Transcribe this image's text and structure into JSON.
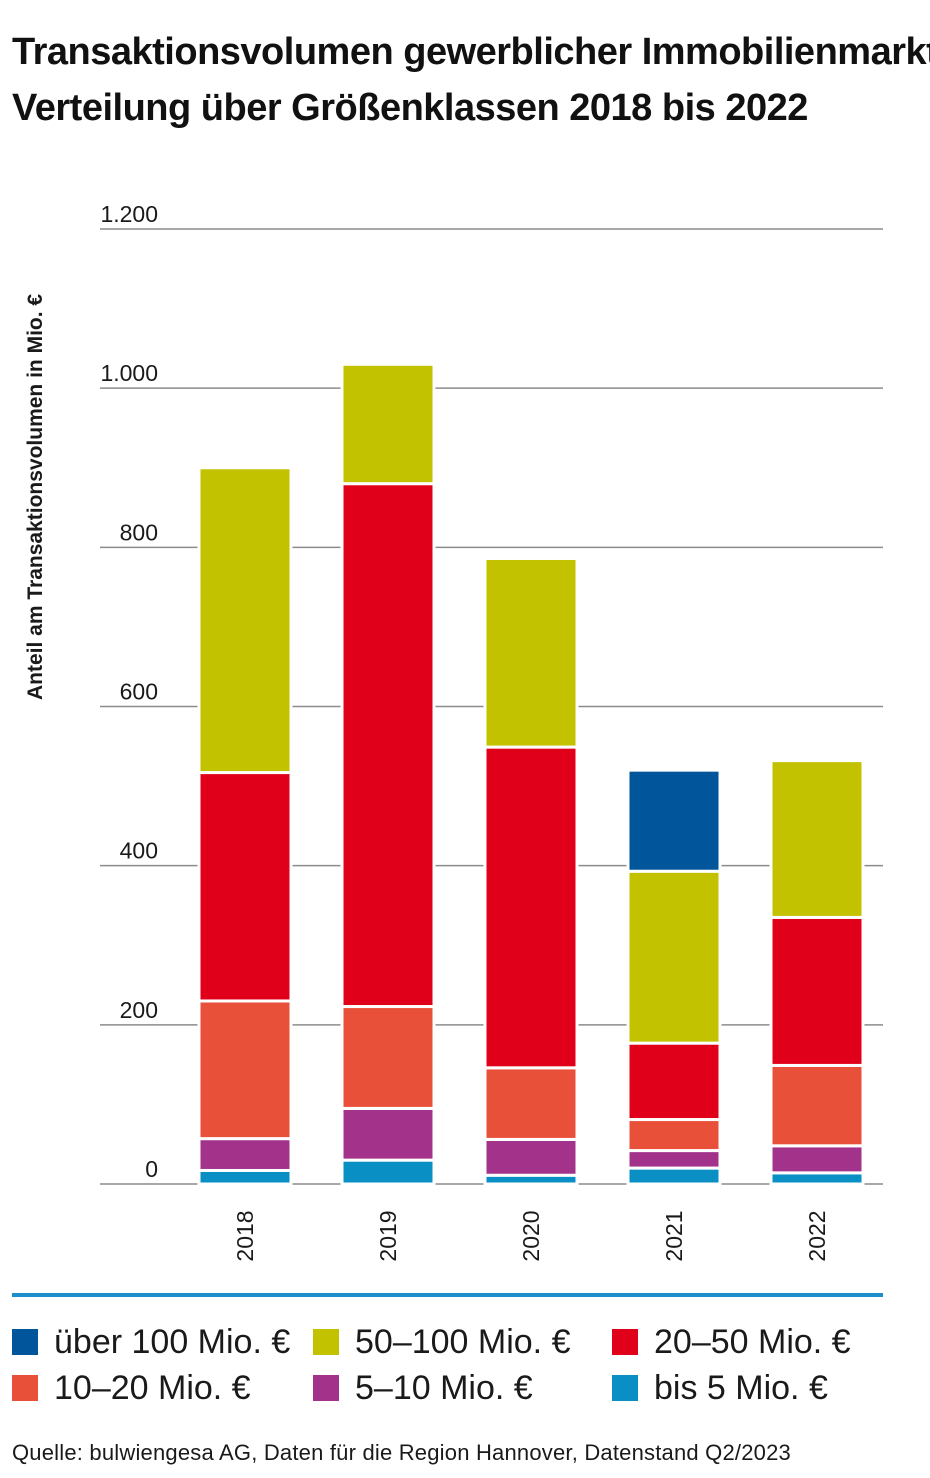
{
  "title": {
    "line1": "Transaktionsvolumen gewerblicher Immobilienmarkt",
    "line2": "Verteilung über Größenklassen 2018 bis 2022"
  },
  "chart_data": {
    "type": "bar",
    "stacked": true,
    "categories": [
      "2018",
      "2019",
      "2020",
      "2021",
      "2022"
    ],
    "ylabel": "Anteil am Transaktionsvolumen in Mio. €",
    "xlabel": "",
    "ylim": [
      0,
      1200
    ],
    "yticks": [
      0,
      200,
      400,
      600,
      800,
      1000,
      1200
    ],
    "ytick_labels": [
      "0",
      "200",
      "400",
      "600",
      "800",
      "1.000",
      "1.200"
    ],
    "grid": true,
    "legend_position": "bottom",
    "series": [
      {
        "name": "bis 5 Mio. €",
        "color": "#0a8fc4",
        "values": [
          17,
          30,
          11,
          20,
          14
        ]
      },
      {
        "name": "5–10 Mio. €",
        "color": "#a3338a",
        "values": [
          40,
          65,
          45,
          22,
          34
        ]
      },
      {
        "name": "10–20 Mio. €",
        "color": "#e8503a",
        "values": [
          173,
          128,
          90,
          39,
          101
        ]
      },
      {
        "name": "20–50 Mio. €",
        "color": "#e1001a",
        "values": [
          287,
          657,
          403,
          96,
          186
        ]
      },
      {
        "name": "50–100 Mio. €",
        "color": "#c2c200",
        "values": [
          383,
          150,
          237,
          216,
          197
        ]
      },
      {
        "name": "über 100 Mio. €",
        "color": "#00559b",
        "values": [
          0,
          0,
          0,
          127,
          0
        ]
      }
    ]
  },
  "legend": [
    {
      "label": "über 100 Mio. €",
      "color": "#00559b"
    },
    {
      "label": "50–100 Mio. €",
      "color": "#c2c200"
    },
    {
      "label": "20–50 Mio. €",
      "color": "#e1001a"
    },
    {
      "label": "10–20 Mio. €",
      "color": "#e8503a"
    },
    {
      "label": "5–10 Mio. €",
      "color": "#a3338a"
    },
    {
      "label": "bis 5 Mio. €",
      "color": "#0a8fc4"
    }
  ],
  "source": "Quelle: bulwiengesa AG, Daten für die Region Hannover, Datenstand Q2/2023",
  "colors": {
    "accent_line": "#1b8fc9",
    "grid": "#8c8c8c"
  }
}
